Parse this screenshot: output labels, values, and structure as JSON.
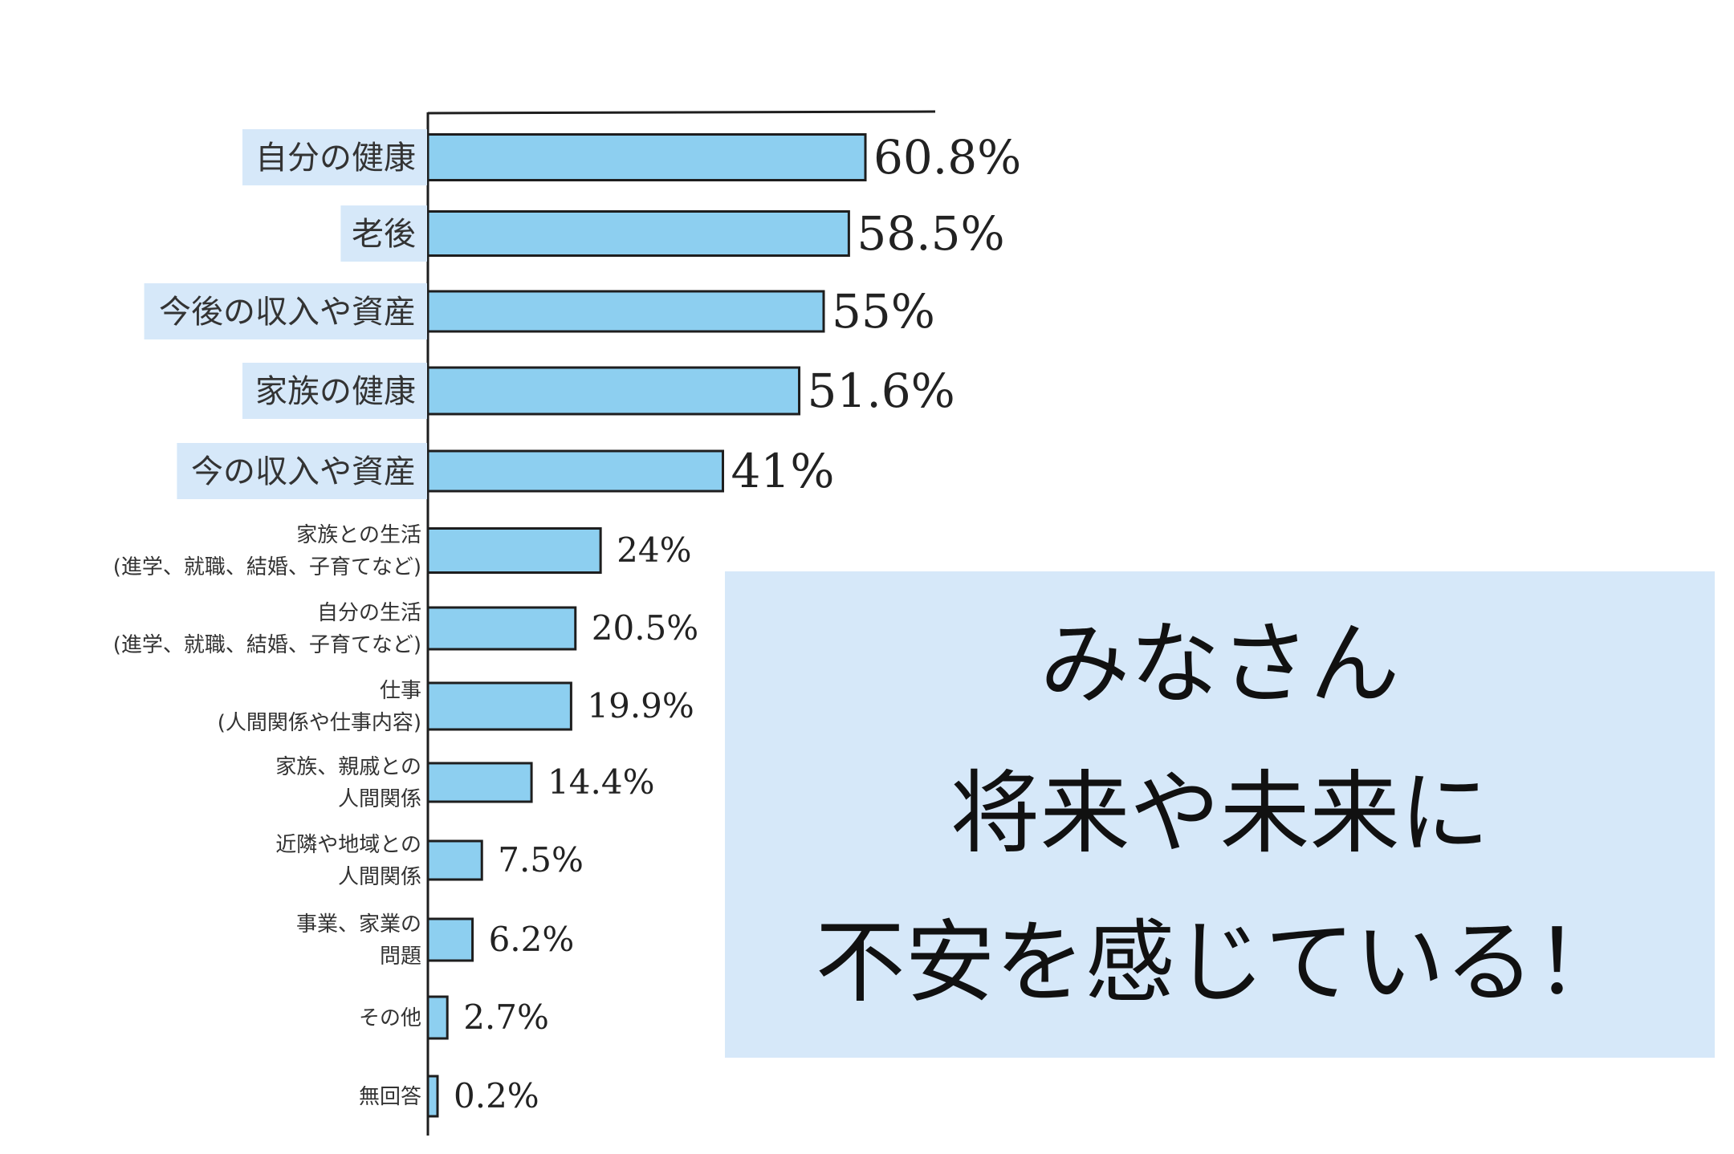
{
  "chart_data": {
    "type": "bar",
    "orientation": "horizontal",
    "categories": [
      [
        "自分の健康"
      ],
      [
        "老後"
      ],
      [
        "今後の収入や資産"
      ],
      [
        "家族の健康"
      ],
      [
        "今の収入や資産"
      ],
      [
        "家族との生活",
        "(進学、就職、結婚、子育てなど)"
      ],
      [
        "自分の生活",
        "(進学、就職、結婚、子育てなど)"
      ],
      [
        "仕事",
        "(人間関係や仕事内容)"
      ],
      [
        "家族、親戚との",
        "人間関係"
      ],
      [
        "近隣や地域との",
        "人間関係"
      ],
      [
        "事業、家業の",
        "問題"
      ],
      [
        "その他"
      ],
      [
        "無回答"
      ]
    ],
    "values": [
      60.8,
      58.5,
      55,
      51.6,
      41,
      24,
      20.5,
      19.9,
      14.4,
      7.5,
      6.2,
      2.7,
      0.2
    ],
    "value_labels": [
      "60.8%",
      "58.5%",
      "55%",
      "51.6%",
      "41%",
      "24%",
      "20.5%",
      "19.9%",
      "14.4%",
      "7.5%",
      "6.2%",
      "2.7%",
      "0.2%"
    ],
    "highlighted_categories": 5,
    "title": "",
    "xlabel": "",
    "ylabel": "",
    "xlim": [
      0,
      70
    ],
    "grid": false,
    "bar_color": "#8dcff0",
    "bar_edge_color": "#1e1e1e",
    "label_highlight_color": "#d6e8f9"
  },
  "callout": {
    "lines": [
      "みなさん",
      "将来や未来に",
      "不安を感じている！"
    ],
    "background_color": "#d6e8f9"
  }
}
